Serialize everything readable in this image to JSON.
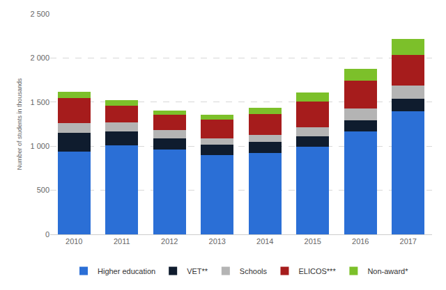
{
  "chart_data": {
    "type": "bar",
    "stacked": true,
    "grid": true,
    "legend": "bottom",
    "y_label": "Number of students in thousands",
    "categories": [
      "2010",
      "2011",
      "2012",
      "2013",
      "2014",
      "2015",
      "2016",
      "2017"
    ],
    "ylim": [
      0,
      2500
    ],
    "yticks": [
      0,
      500,
      {
        "value": 1000,
        "label": "1 000"
      },
      {
        "value": 1500,
        "label": "1 500"
      },
      {
        "value": 2000,
        "label": "2 000"
      },
      {
        "value": 2500,
        "label": "2 500"
      }
    ],
    "series": [
      {
        "name": "Higher education",
        "color": "#2b6fd6",
        "values": [
          940,
          1010,
          960,
          900,
          925,
          990,
          1170,
          1395
        ]
      },
      {
        "name": "VET**",
        "color": "#0f1c2e",
        "values": [
          210,
          160,
          130,
          120,
          120,
          120,
          125,
          145
        ]
      },
      {
        "name": "Schools",
        "color": "#b4b4b4",
        "values": [
          112,
          100,
          95,
          70,
          80,
          105,
          130,
          150
        ]
      },
      {
        "name": "ELICOS***",
        "color": "#a61c1c",
        "values": [
          280,
          190,
          170,
          210,
          240,
          295,
          315,
          345
        ]
      },
      {
        "name": "Non-award*",
        "color": "#7cc02a",
        "values": [
          72,
          60,
          50,
          55,
          70,
          95,
          140,
          180
        ]
      }
    ]
  }
}
